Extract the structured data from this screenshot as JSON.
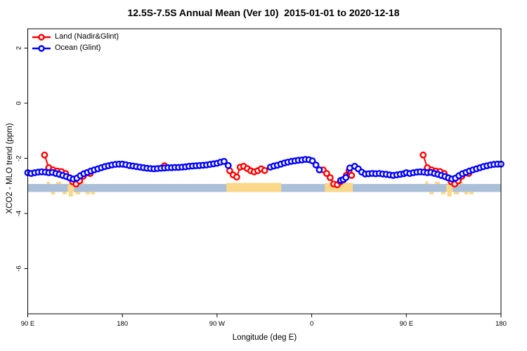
{
  "chart": {
    "title": "12.5S-7.5S Annual Mean (Ver 10)  2015-01-01 to 2020-12-18",
    "xlabel": "Longitude (deg E)",
    "ylabel": "XCO2 - MLO trend (ppm)"
  },
  "chart_data": {
    "type": "line",
    "title": "12.5S-7.5S Annual Mean (Ver 10)  2015-01-01 to 2020-12-18",
    "xlabel": "Longitude (deg E)",
    "ylabel": "XCO2 - MLO trend (ppm)",
    "xlim": [
      90,
      540
    ],
    "ylim": [
      -7.64,
      2.7
    ],
    "grid": false,
    "legend_position": "top-left",
    "x_axis_note": "longitude wraps eastward: 90E to 180, 90W, 0, 90E, 180",
    "x_ticks": [
      {
        "v": 90,
        "label": "90 E"
      },
      {
        "v": 180,
        "label": "180"
      },
      {
        "v": 270,
        "label": "90 W"
      },
      {
        "v": 360,
        "label": "0"
      },
      {
        "v": 450,
        "label": "90 E"
      },
      {
        "v": 540,
        "label": "180"
      }
    ],
    "y_ticks": [
      {
        "v": 2,
        "label": "2"
      },
      {
        "v": 0,
        "label": "0"
      },
      {
        "v": -2,
        "label": "-2"
      },
      {
        "v": -4,
        "label": "-4"
      },
      {
        "v": -6,
        "label": "-6"
      }
    ],
    "series": [
      {
        "name": "Land (Nadir&Glint)",
        "color": "#ff0000",
        "segments": [
          [
            [
              106,
              -1.88
            ],
            [
              110,
              -2.34
            ],
            [
              114,
              -2.42
            ],
            [
              118,
              -2.46
            ],
            [
              122,
              -2.48
            ],
            [
              126,
              -2.55
            ],
            [
              129.3,
              -2.7
            ],
            [
              132.7,
              -2.85
            ],
            [
              136,
              -2.93
            ],
            [
              139.3,
              -2.82
            ],
            [
              142.7,
              -2.65
            ],
            [
              146,
              -2.53
            ],
            [
              149.3,
              -2.55
            ]
          ],
          [
            [
              220,
              -2.27
            ]
          ],
          [
            [
              282,
              -2.45
            ],
            [
              285.3,
              -2.6
            ],
            [
              288.7,
              -2.68
            ],
            [
              292,
              -2.32
            ],
            [
              295.3,
              -2.29
            ],
            [
              298.7,
              -2.37
            ],
            [
              302,
              -2.45
            ],
            [
              305.3,
              -2.49
            ],
            [
              308.7,
              -2.45
            ],
            [
              312,
              -2.38
            ],
            [
              315.3,
              -2.44
            ]
          ],
          [
            [
              370.9,
              -2.42
            ],
            [
              374.2,
              -2.55
            ],
            [
              377.6,
              -2.7
            ],
            [
              380.9,
              -2.93
            ],
            [
              384.3,
              -2.96
            ],
            [
              387.2,
              -2.85
            ],
            [
              390.3,
              -2.78
            ],
            [
              392.9,
              -2.62
            ],
            [
              395.5,
              -2.45
            ],
            [
              397.9,
              -2.62
            ]
          ],
          [
            [
              466,
              -1.88
            ],
            [
              470,
              -2.34
            ],
            [
              474,
              -2.42
            ],
            [
              478,
              -2.46
            ],
            [
              482,
              -2.48
            ],
            [
              486,
              -2.55
            ],
            [
              489.3,
              -2.7
            ],
            [
              492.7,
              -2.85
            ],
            [
              496,
              -2.93
            ],
            [
              499.3,
              -2.82
            ],
            [
              502.7,
              -2.65
            ],
            [
              506,
              -2.53
            ],
            [
              509.3,
              -2.55
            ]
          ]
        ]
      },
      {
        "name": "Ocean (Glint)",
        "color": "#0000ff",
        "segments": [
          [
            [
              90,
              -2.52
            ],
            [
              93.3,
              -2.55
            ],
            [
              96.7,
              -2.52
            ],
            [
              100,
              -2.5
            ],
            [
              103.3,
              -2.49
            ],
            [
              106.7,
              -2.5
            ],
            [
              110,
              -2.52
            ],
            [
              113.3,
              -2.51
            ],
            [
              116.7,
              -2.55
            ],
            [
              120,
              -2.58
            ],
            [
              123.3,
              -2.62
            ],
            [
              126.7,
              -2.66
            ],
            [
              130,
              -2.71
            ],
            [
              133.3,
              -2.75
            ],
            [
              136.7,
              -2.72
            ],
            [
              140,
              -2.63
            ],
            [
              143.3,
              -2.56
            ],
            [
              146.7,
              -2.51
            ],
            [
              150,
              -2.46
            ],
            [
              153.3,
              -2.42
            ],
            [
              156.7,
              -2.38
            ],
            [
              160,
              -2.34
            ],
            [
              163.3,
              -2.3
            ],
            [
              166.7,
              -2.27
            ],
            [
              170,
              -2.24
            ],
            [
              173.3,
              -2.22
            ],
            [
              176.7,
              -2.21
            ],
            [
              180,
              -2.21
            ],
            [
              183.3,
              -2.23
            ],
            [
              186.7,
              -2.26
            ],
            [
              190,
              -2.28
            ],
            [
              193.3,
              -2.3
            ],
            [
              196.7,
              -2.32
            ],
            [
              200,
              -2.34
            ],
            [
              203.3,
              -2.36
            ],
            [
              206.7,
              -2.37
            ],
            [
              210,
              -2.38
            ],
            [
              213.3,
              -2.37
            ],
            [
              216.7,
              -2.36
            ],
            [
              220,
              -2.35
            ],
            [
              223.3,
              -2.34
            ],
            [
              226.7,
              -2.34
            ],
            [
              230,
              -2.33
            ],
            [
              233.3,
              -2.33
            ],
            [
              236.7,
              -2.32
            ],
            [
              240,
              -2.31
            ],
            [
              243.3,
              -2.29
            ],
            [
              246.7,
              -2.28
            ],
            [
              250,
              -2.27
            ],
            [
              253.3,
              -2.26
            ],
            [
              256.7,
              -2.25
            ],
            [
              260,
              -2.24
            ],
            [
              263.3,
              -2.22
            ],
            [
              266.7,
              -2.2
            ],
            [
              270,
              -2.18
            ],
            [
              273.3,
              -2.14
            ],
            [
              276.7,
              -2.11
            ],
            [
              280.6,
              -2.26
            ]
          ],
          [
            [
              320.7,
              -2.32
            ],
            [
              324,
              -2.28
            ],
            [
              327.3,
              -2.25
            ],
            [
              330.7,
              -2.21
            ],
            [
              334,
              -2.17
            ],
            [
              337.3,
              -2.14
            ],
            [
              340.7,
              -2.11
            ],
            [
              344,
              -2.09
            ],
            [
              347.3,
              -2.07
            ],
            [
              350.7,
              -2.06
            ],
            [
              354,
              -2.04
            ],
            [
              357.3,
              -2.05
            ],
            [
              360.7,
              -2.09
            ],
            [
              364,
              -2.24
            ],
            [
              367.3,
              -2.42
            ]
          ],
          [
            [
              387.5,
              -2.8
            ],
            [
              390,
              -2.77
            ],
            [
              392.5,
              -2.7
            ],
            [
              396.2,
              -2.35
            ],
            [
              400.9,
              -2.29
            ],
            [
              404.2,
              -2.38
            ],
            [
              407.6,
              -2.5
            ],
            [
              410.9,
              -2.57
            ],
            [
              414.2,
              -2.56
            ],
            [
              417.5,
              -2.55
            ],
            [
              420.9,
              -2.56
            ],
            [
              424.2,
              -2.55
            ],
            [
              427.5,
              -2.57
            ],
            [
              430.9,
              -2.58
            ],
            [
              434.2,
              -2.6
            ],
            [
              437.5,
              -2.62
            ],
            [
              440.9,
              -2.6
            ],
            [
              444.2,
              -2.58
            ],
            [
              447.5,
              -2.56
            ],
            [
              450,
              -2.52
            ],
            [
              453.3,
              -2.55
            ],
            [
              456.7,
              -2.52
            ],
            [
              460,
              -2.5
            ],
            [
              463.3,
              -2.49
            ],
            [
              466.7,
              -2.5
            ],
            [
              470,
              -2.52
            ],
            [
              473.3,
              -2.51
            ],
            [
              476.7,
              -2.55
            ],
            [
              480,
              -2.58
            ],
            [
              483.3,
              -2.62
            ],
            [
              486.7,
              -2.66
            ],
            [
              490,
              -2.71
            ],
            [
              493.3,
              -2.75
            ],
            [
              496.7,
              -2.72
            ],
            [
              500,
              -2.63
            ],
            [
              503.3,
              -2.56
            ],
            [
              506.7,
              -2.51
            ],
            [
              510,
              -2.46
            ],
            [
              513.3,
              -2.42
            ],
            [
              516.7,
              -2.38
            ],
            [
              520,
              -2.34
            ],
            [
              523.3,
              -2.3
            ],
            [
              526.7,
              -2.27
            ],
            [
              530,
              -2.24
            ],
            [
              533.3,
              -2.22
            ],
            [
              536.7,
              -2.21
            ],
            [
              540,
              -2.21
            ]
          ]
        ]
      }
    ],
    "surface_strip": {
      "description": "land/ocean map band along latitude zone",
      "ocean_color": "#abc0d8",
      "land_color": "#fbd78a",
      "y_top": -2.93,
      "y_bottom": -3.22,
      "land_segments": [
        [
          279,
          331
        ],
        [
          372.5,
          399
        ]
      ],
      "island_fragments": [
        {
          "s": 108,
          "e": 111,
          "pos": "a"
        },
        {
          "s": 112,
          "e": 116,
          "pos": "b"
        },
        {
          "s": 117,
          "e": 122,
          "pos": "a"
        },
        {
          "s": 123,
          "e": 127,
          "pos": "b"
        },
        {
          "s": 128,
          "e": 134,
          "pos": "m"
        },
        {
          "s": 129,
          "e": 133,
          "pos": "bb"
        },
        {
          "s": 135,
          "e": 140,
          "pos": "b"
        },
        {
          "s": 141,
          "e": 144,
          "pos": "a"
        },
        {
          "s": 145,
          "e": 149,
          "pos": "b"
        },
        {
          "s": 150,
          "e": 154,
          "pos": "b"
        },
        {
          "s": 468,
          "e": 471,
          "pos": "a"
        },
        {
          "s": 472,
          "e": 476,
          "pos": "b"
        },
        {
          "s": 477,
          "e": 482,
          "pos": "a"
        },
        {
          "s": 483,
          "e": 487,
          "pos": "b"
        },
        {
          "s": 488,
          "e": 494,
          "pos": "m"
        },
        {
          "s": 489,
          "e": 493,
          "pos": "bb"
        },
        {
          "s": 495,
          "e": 500,
          "pos": "b"
        },
        {
          "s": 501,
          "e": 504,
          "pos": "a"
        },
        {
          "s": 505,
          "e": 509,
          "pos": "b"
        },
        {
          "s": 510,
          "e": 514,
          "pos": "b"
        }
      ]
    }
  }
}
